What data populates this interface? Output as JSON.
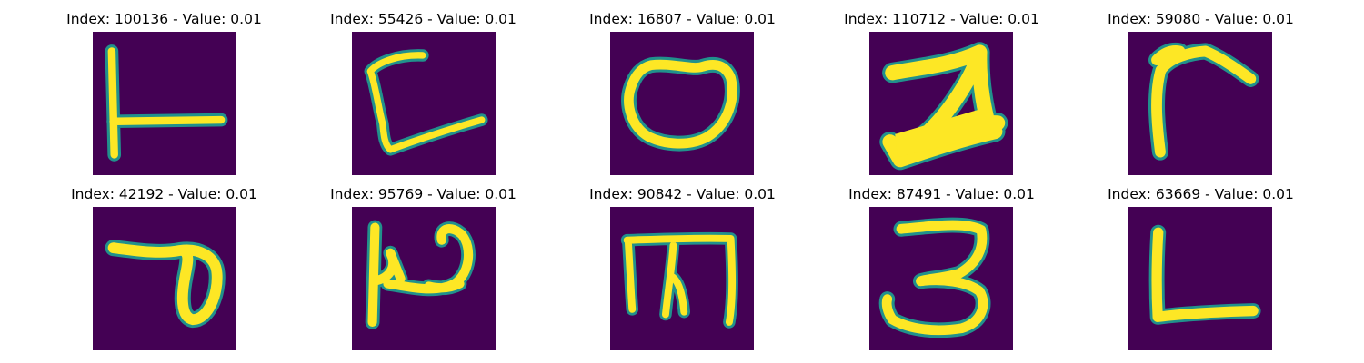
{
  "figure": {
    "panels": [
      {
        "title": "Index: 100136 - Value: 0.01",
        "glyph": "handwritten-T-rotated"
      },
      {
        "title": "Index: 55426 - Value: 0.01",
        "glyph": "handwritten-L-curly"
      },
      {
        "title": "Index: 16807 - Value: 0.01",
        "glyph": "handwritten-O"
      },
      {
        "title": "Index: 110712 - Value: 0.01",
        "glyph": "handwritten-Z"
      },
      {
        "title": "Index: 59080 - Value: 0.01",
        "glyph": "handwritten-r"
      },
      {
        "title": "Index: 42192 - Value: 0.01",
        "glyph": "handwritten-loop-7"
      },
      {
        "title": "Index: 95769 - Value: 0.01",
        "glyph": "handwritten-P-rotated"
      },
      {
        "title": "Index: 90842 - Value: 0.01",
        "glyph": "handwritten-m"
      },
      {
        "title": "Index: 87491 - Value: 0.01",
        "glyph": "handwritten-3"
      },
      {
        "title": "Index: 63669 - Value: 0.01",
        "glyph": "handwritten-L"
      }
    ],
    "colors": {
      "background": "#440154",
      "stroke": "#fde725",
      "stroke_edge": "#21918c"
    }
  }
}
